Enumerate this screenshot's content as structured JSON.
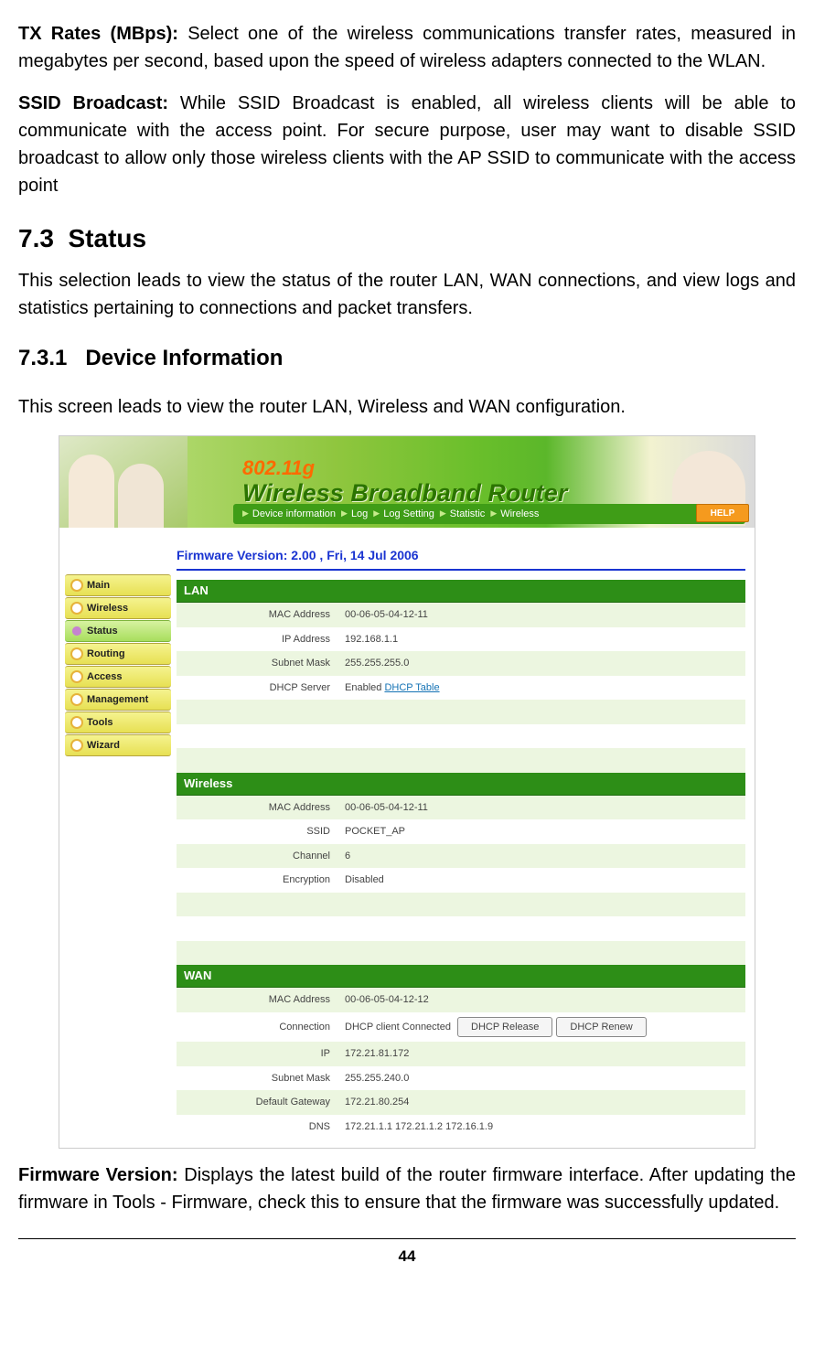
{
  "intro": {
    "tx_label": "TX Rates (MBps):",
    "tx_text": " Select one of the wireless communications transfer rates, measured in megabytes per second, based upon the speed of wireless adapters connected to the WLAN.",
    "ssid_label": "SSID Broadcast:",
    "ssid_text": " While SSID Broadcast is enabled, all wireless clients will be able to communicate with the access point.  For secure purpose, user may want to disable SSID broadcast to allow only those wireless clients with the AP SSID to communicate with the access point"
  },
  "section": {
    "num": "7.3",
    "title": "Status",
    "desc": "This selection leads to view the status of the router LAN, WAN connections, and view logs and statistics pertaining to connections and packet transfers."
  },
  "subsection": {
    "num": "7.3.1",
    "title": "Device Information",
    "desc": "This screen leads to view the router LAN, Wireless and WAN configuration."
  },
  "banner": {
    "brand": "802.11g",
    "subtitle": "Wireless Broadband Router",
    "tabs": [
      "Device information",
      "Log",
      "Log Setting",
      "Statistic",
      "Wireless"
    ],
    "help": "HELP"
  },
  "nav": [
    "Main",
    "Wireless",
    "Status",
    "Routing",
    "Access",
    "Management",
    "Tools",
    "Wizard"
  ],
  "nav_selected_index": 2,
  "firmware": {
    "label": "Firmware Version:",
    "value": "2.00 , Fri, 14 Jul 2006"
  },
  "lan": {
    "header": "LAN",
    "rows": [
      {
        "label": "MAC Address",
        "value": "00-06-05-04-12-11"
      },
      {
        "label": "IP Address",
        "value": "192.168.1.1"
      },
      {
        "label": "Subnet Mask",
        "value": "255.255.255.0"
      },
      {
        "label": "DHCP Server",
        "value": "Enabled",
        "link": "DHCP Table"
      }
    ]
  },
  "wireless": {
    "header": "Wireless",
    "rows": [
      {
        "label": "MAC Address",
        "value": "00-06-05-04-12-11"
      },
      {
        "label": "SSID",
        "value": "POCKET_AP"
      },
      {
        "label": "Channel",
        "value": "6"
      },
      {
        "label": "Encryption",
        "value": "Disabled"
      }
    ]
  },
  "wan": {
    "header": "WAN",
    "rows": [
      {
        "label": "MAC Address",
        "value": "00-06-05-04-12-12"
      },
      {
        "label": "Connection",
        "value": "DHCP client Connected",
        "buttons": [
          "DHCP Release",
          "DHCP Renew"
        ]
      },
      {
        "label": "IP",
        "value": "172.21.81.172"
      },
      {
        "label": "Subnet Mask",
        "value": "255.255.240.0"
      },
      {
        "label": "Default Gateway",
        "value": "172.21.80.254"
      },
      {
        "label": "DNS",
        "value": "172.21.1.1 172.21.1.2 172.16.1.9"
      }
    ]
  },
  "outro": {
    "fw_label": "Firmware Version:",
    "fw_text": " Displays the latest build of the router firmware interface. After updating the firmware in Tools - Firmware, check this to ensure that the firmware was successfully updated."
  },
  "page_number": "44"
}
